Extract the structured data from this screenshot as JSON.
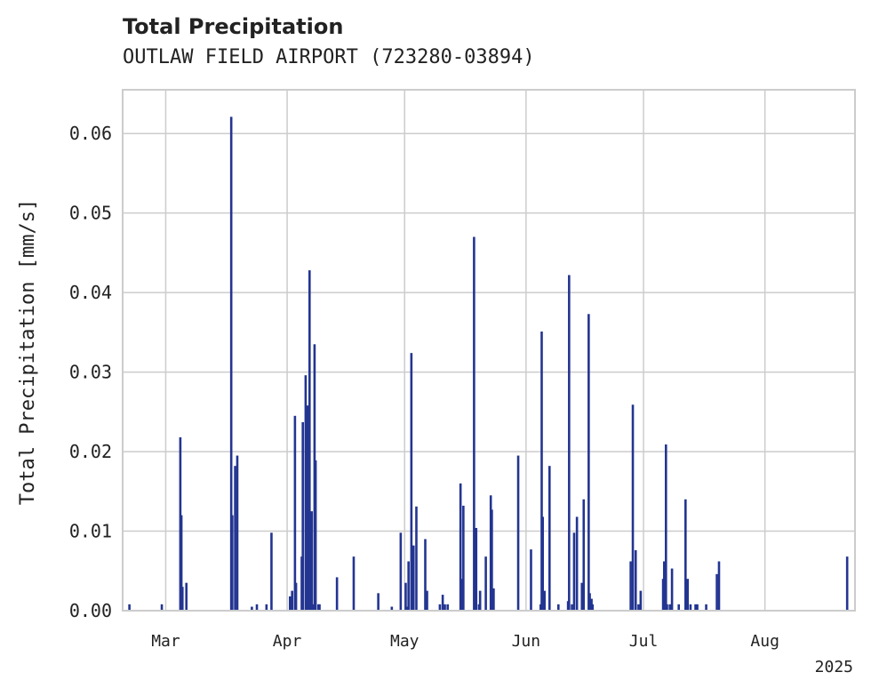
{
  "chart_data": {
    "type": "bar",
    "title": "Total Precipitation",
    "subtitle": "OUTLAW FIELD AIRPORT (723280-03894)",
    "xlabel": "",
    "ylabel": "Total Precipitation [mm/s]",
    "xlim": [
      "2025-02-18",
      "2025-08-24"
    ],
    "ylim": [
      0,
      0.0655
    ],
    "yticks": [
      0.0,
      0.01,
      0.02,
      0.03,
      0.04,
      0.05,
      0.06
    ],
    "ytick_labels": [
      "0.00",
      "0.01",
      "0.02",
      "0.03",
      "0.04",
      "0.05",
      "0.06"
    ],
    "xticks": [
      "2025-03-01",
      "2025-04-01",
      "2025-05-01",
      "2025-06-01",
      "2025-07-01",
      "2025-08-01"
    ],
    "xtick_labels": [
      "Mar",
      "Apr",
      "May",
      "Jun",
      "Jul",
      "Aug"
    ],
    "x_offset_label": "2025",
    "grid": true,
    "bar_color": "#233591",
    "x": [
      "2025-02-20",
      "2025-02-28",
      "2025-03-05",
      "2025-03-05",
      "2025-03-05",
      "2025-03-06",
      "2025-03-18",
      "2025-03-18",
      "2025-03-19",
      "2025-03-19",
      "2025-03-23",
      "2025-03-24",
      "2025-03-27",
      "2025-03-28",
      "2025-04-02",
      "2025-04-02",
      "2025-04-03",
      "2025-04-03",
      "2025-04-05",
      "2025-04-05",
      "2025-04-06",
      "2025-04-06",
      "2025-04-06",
      "2025-04-07",
      "2025-04-07",
      "2025-04-08",
      "2025-04-08",
      "2025-04-08",
      "2025-04-09",
      "2025-04-09",
      "2025-04-14",
      "2025-04-18",
      "2025-04-24",
      "2025-04-28",
      "2025-04-30",
      "2025-05-01",
      "2025-05-02",
      "2025-05-02",
      "2025-05-03",
      "2025-05-03",
      "2025-05-04",
      "2025-05-06",
      "2025-05-07",
      "2025-05-10",
      "2025-05-11",
      "2025-05-11",
      "2025-05-12",
      "2025-05-15",
      "2025-05-16",
      "2025-05-16",
      "2025-05-19",
      "2025-05-19",
      "2025-05-20",
      "2025-05-20",
      "2025-05-22",
      "2025-05-23",
      "2025-05-23",
      "2025-05-24",
      "2025-05-30",
      "2025-06-02",
      "2025-06-05",
      "2025-06-05",
      "2025-06-05",
      "2025-06-06",
      "2025-06-07",
      "2025-06-09",
      "2025-06-12",
      "2025-06-12",
      "2025-06-13",
      "2025-06-13",
      "2025-06-14",
      "2025-06-15",
      "2025-06-16",
      "2025-06-17",
      "2025-06-17",
      "2025-06-18",
      "2025-06-18",
      "2025-06-28",
      "2025-06-28",
      "2025-06-29",
      "2025-06-30",
      "2025-06-30",
      "2025-07-06",
      "2025-07-06",
      "2025-07-07",
      "2025-07-07",
      "2025-07-08",
      "2025-07-08",
      "2025-07-10",
      "2025-07-12",
      "2025-07-12",
      "2025-07-13",
      "2025-07-14",
      "2025-07-15",
      "2025-07-17",
      "2025-07-20",
      "2025-07-20",
      "2025-08-22"
    ],
    "values": [
      0.0008,
      0.0008,
      0.003,
      0.0218,
      0.012,
      0.0035,
      0.0621,
      0.012,
      0.0195,
      0.0182,
      0.0005,
      0.0008,
      0.0008,
      0.0098,
      0.0025,
      0.0018,
      0.0245,
      0.0035,
      0.0068,
      0.0237,
      0.0258,
      0.0296,
      0.0045,
      0.0125,
      0.0428,
      0.0335,
      0.0189,
      0.0008,
      0.0008,
      0.0008,
      0.0042,
      0.0068,
      0.0022,
      0.0005,
      0.0098,
      0.0035,
      0.0005,
      0.0062,
      0.0082,
      0.0324,
      0.0131,
      0.009,
      0.0025,
      0.0008,
      0.0008,
      0.002,
      0.0008,
      0.016,
      0.004,
      0.0132,
      0.0104,
      0.047,
      0.0008,
      0.0025,
      0.0068,
      0.0145,
      0.0127,
      0.0028,
      0.0195,
      0.0077,
      0.0008,
      0.0351,
      0.0118,
      0.0025,
      0.0182,
      0.0008,
      0.0012,
      0.0422,
      0.0098,
      0.0008,
      0.0118,
      0.0035,
      0.014,
      0.0373,
      0.0022,
      0.0015,
      0.0008,
      0.0259,
      0.0062,
      0.0076,
      0.0025,
      0.0008,
      0.004,
      0.0062,
      0.0209,
      0.0008,
      0.0053,
      0.0008,
      0.0008,
      0.004,
      0.014,
      0.0008,
      0.0008,
      0.0008,
      0.0008,
      0.0062,
      0.0046,
      0.0068
    ]
  }
}
